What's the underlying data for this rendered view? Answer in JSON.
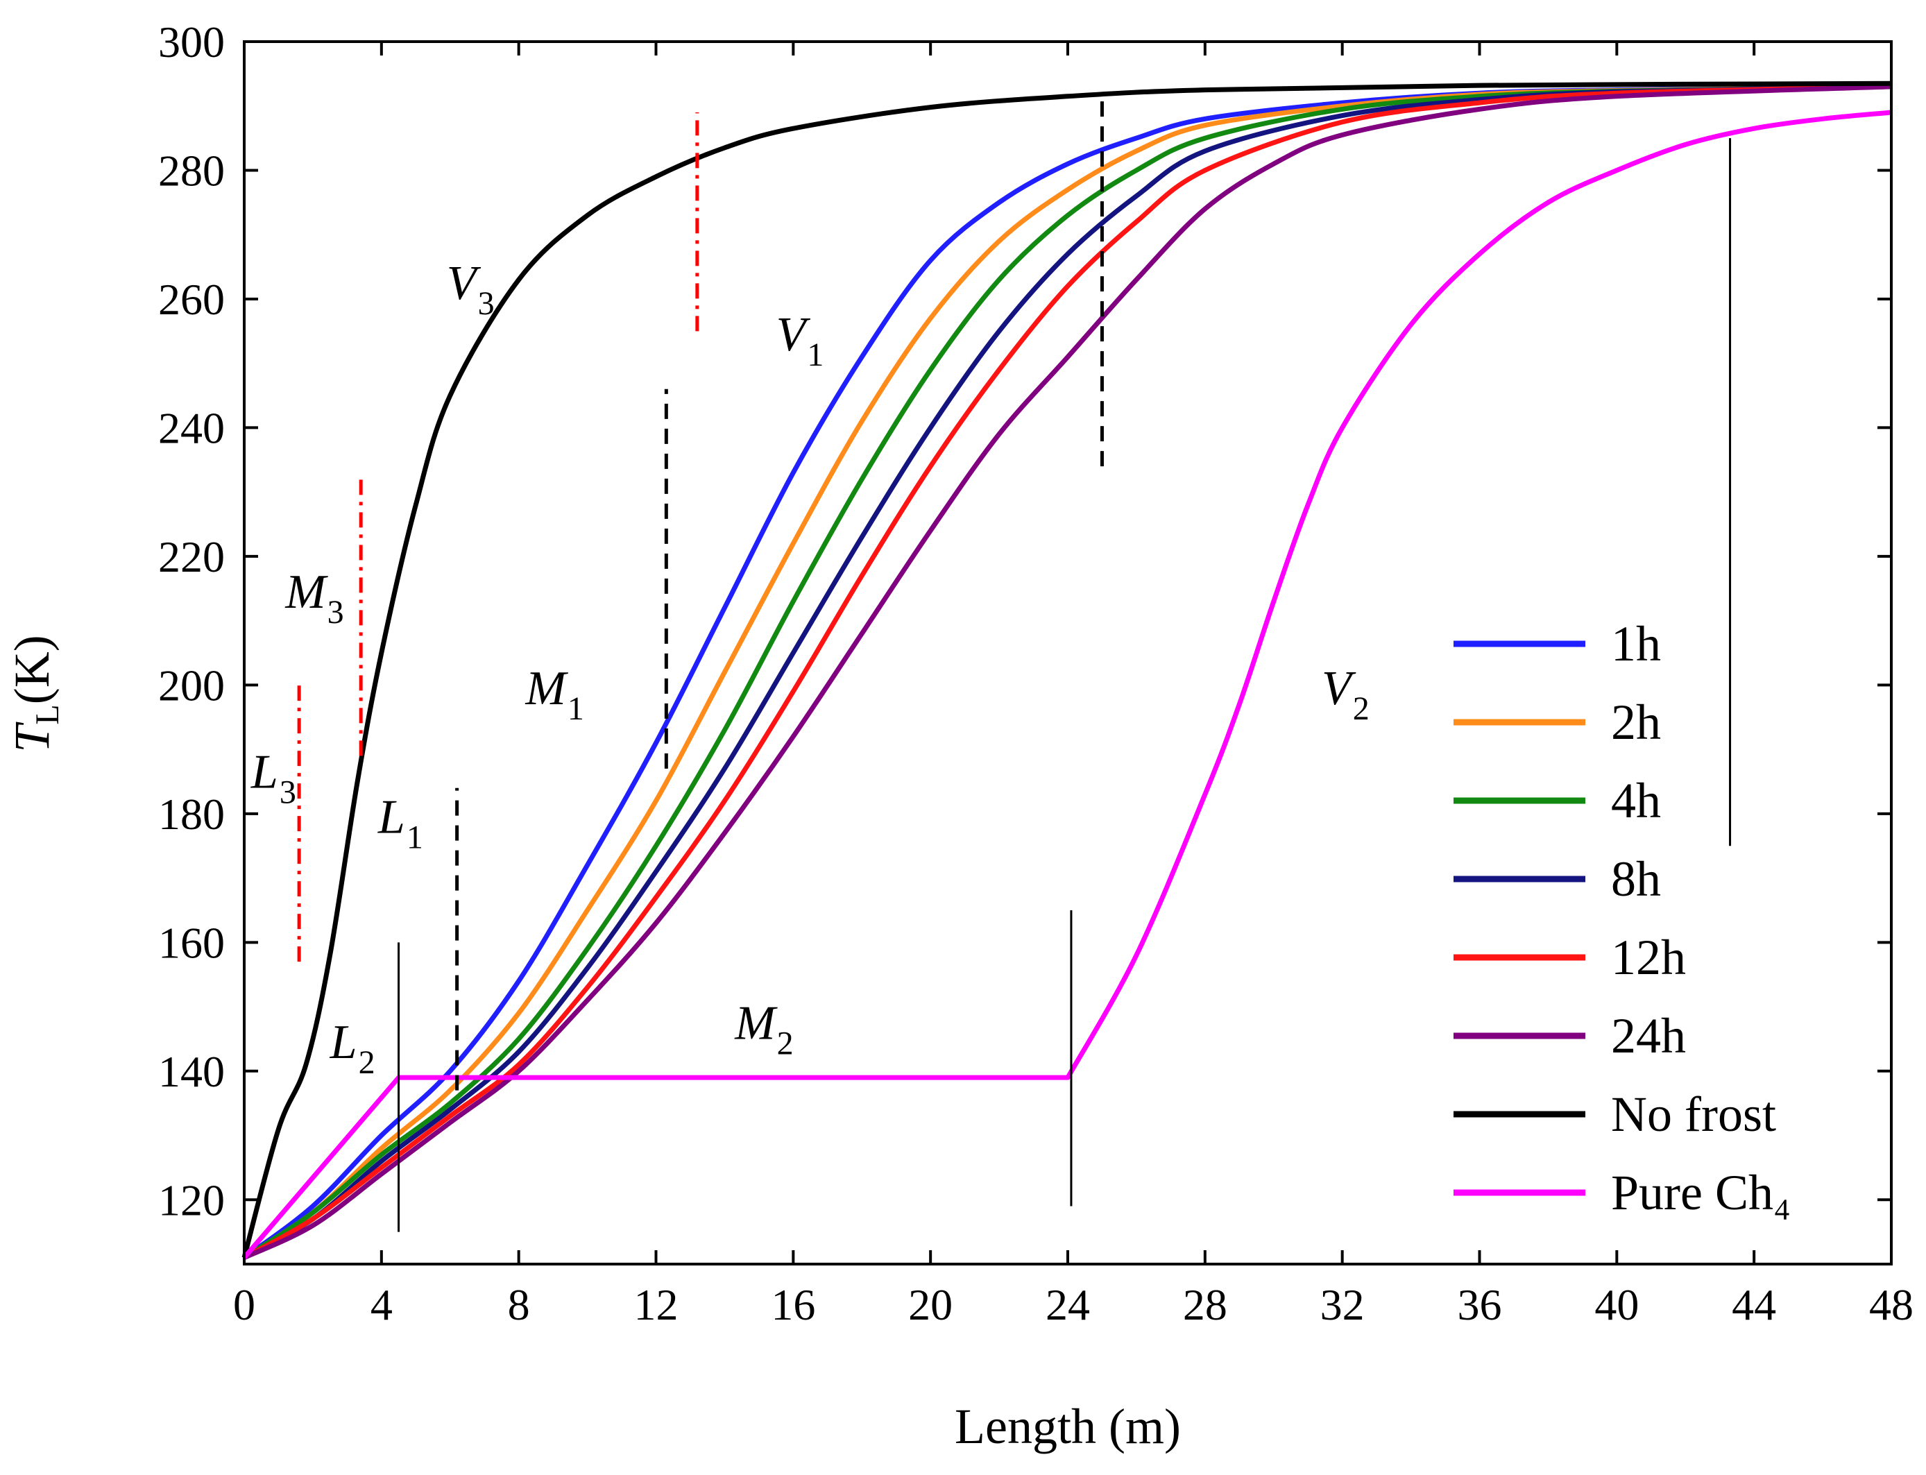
{
  "chart_data": {
    "type": "line",
    "xlabel": "Length (m)",
    "ylabel": {
      "main": "T",
      "sub": "L",
      "unit": "(K)"
    },
    "xlim": [
      0,
      48
    ],
    "ylim": [
      110,
      300
    ],
    "xticks": [
      0,
      4,
      8,
      12,
      16,
      20,
      24,
      28,
      32,
      36,
      40,
      44,
      48
    ],
    "yticks": [
      120,
      140,
      160,
      180,
      200,
      220,
      240,
      260,
      280,
      300
    ],
    "grid": false,
    "legend_position": "bottom-right",
    "series": [
      {
        "name": "1h",
        "color": "#1f1fff",
        "points": [
          [
            0,
            111
          ],
          [
            2,
            119
          ],
          [
            4,
            130
          ],
          [
            6,
            140
          ],
          [
            8,
            154
          ],
          [
            10,
            172
          ],
          [
            12,
            191
          ],
          [
            14,
            212
          ],
          [
            16,
            233
          ],
          [
            18,
            251
          ],
          [
            20,
            266
          ],
          [
            22,
            275
          ],
          [
            24,
            281
          ],
          [
            26,
            285
          ],
          [
            28,
            288
          ],
          [
            32,
            290.5
          ],
          [
            36,
            292
          ],
          [
            40,
            292.5
          ],
          [
            48,
            293
          ]
        ]
      },
      {
        "name": "2h",
        "color": "#ff8c1a",
        "points": [
          [
            0,
            111
          ],
          [
            2,
            118
          ],
          [
            4,
            128
          ],
          [
            6,
            137
          ],
          [
            8,
            149
          ],
          [
            10,
            165
          ],
          [
            12,
            182
          ],
          [
            14,
            202
          ],
          [
            16,
            222
          ],
          [
            18,
            241
          ],
          [
            20,
            257
          ],
          [
            22,
            269
          ],
          [
            24,
            277
          ],
          [
            26,
            283
          ],
          [
            28,
            287
          ],
          [
            32,
            290
          ],
          [
            36,
            291.8
          ],
          [
            40,
            292.4
          ],
          [
            48,
            293
          ]
        ]
      },
      {
        "name": "4h",
        "color": "#128a12",
        "points": [
          [
            0,
            111
          ],
          [
            2,
            118
          ],
          [
            4,
            127
          ],
          [
            6,
            135
          ],
          [
            8,
            145
          ],
          [
            10,
            159
          ],
          [
            12,
            175
          ],
          [
            14,
            193
          ],
          [
            16,
            213
          ],
          [
            18,
            232
          ],
          [
            20,
            249
          ],
          [
            22,
            263
          ],
          [
            24,
            273
          ],
          [
            26,
            280
          ],
          [
            28,
            285
          ],
          [
            32,
            289.5
          ],
          [
            36,
            291.5
          ],
          [
            40,
            292.3
          ],
          [
            48,
            293
          ]
        ]
      },
      {
        "name": "8h",
        "color": "#141480",
        "points": [
          [
            0,
            111
          ],
          [
            2,
            117
          ],
          [
            4,
            126
          ],
          [
            6,
            134
          ],
          [
            8,
            143
          ],
          [
            10,
            156
          ],
          [
            12,
            171
          ],
          [
            14,
            187
          ],
          [
            16,
            205
          ],
          [
            18,
            223
          ],
          [
            20,
            240
          ],
          [
            22,
            255
          ],
          [
            24,
            267
          ],
          [
            26,
            276
          ],
          [
            28,
            283
          ],
          [
            32,
            288.5
          ],
          [
            36,
            291
          ],
          [
            40,
            292.2
          ],
          [
            48,
            293
          ]
        ]
      },
      {
        "name": "12h",
        "color": "#ff1414",
        "points": [
          [
            0,
            111
          ],
          [
            2,
            117
          ],
          [
            4,
            125
          ],
          [
            6,
            133
          ],
          [
            8,
            141
          ],
          [
            10,
            153
          ],
          [
            12,
            167
          ],
          [
            14,
            182
          ],
          [
            16,
            199
          ],
          [
            18,
            217
          ],
          [
            20,
            234
          ],
          [
            22,
            249
          ],
          [
            24,
            262
          ],
          [
            26,
            272
          ],
          [
            28,
            280
          ],
          [
            32,
            287.5
          ],
          [
            36,
            290.5
          ],
          [
            40,
            292
          ],
          [
            48,
            293
          ]
        ]
      },
      {
        "name": "24h",
        "color": "#800080",
        "points": [
          [
            0,
            111
          ],
          [
            2,
            116
          ],
          [
            4,
            124
          ],
          [
            6,
            132
          ],
          [
            8,
            140
          ],
          [
            10,
            151
          ],
          [
            12,
            163
          ],
          [
            14,
            177
          ],
          [
            16,
            192
          ],
          [
            18,
            208
          ],
          [
            20,
            224
          ],
          [
            22,
            239
          ],
          [
            24,
            251
          ],
          [
            26,
            263
          ],
          [
            28,
            274
          ],
          [
            30,
            281
          ],
          [
            32,
            285.5
          ],
          [
            36,
            289.5
          ],
          [
            40,
            291.5
          ],
          [
            48,
            293
          ]
        ]
      },
      {
        "name": "No frost",
        "color": "#000000",
        "points": [
          [
            0,
            111
          ],
          [
            1,
            131
          ],
          [
            1.8,
            141
          ],
          [
            2.5,
            158
          ],
          [
            3.3,
            185
          ],
          [
            4,
            205
          ],
          [
            5,
            228
          ],
          [
            6,
            245
          ],
          [
            8,
            263
          ],
          [
            10,
            273
          ],
          [
            12,
            279
          ],
          [
            14,
            283.5
          ],
          [
            16,
            286.5
          ],
          [
            20,
            289.8
          ],
          [
            24,
            291.5
          ],
          [
            28,
            292.5
          ],
          [
            36,
            293.2
          ],
          [
            48,
            293.5
          ]
        ]
      },
      {
        "name": "Pure Ch₄",
        "color": "#ff00ff",
        "points": [
          [
            0,
            111
          ],
          [
            4.5,
            139
          ],
          [
            24,
            139
          ],
          [
            26,
            158
          ],
          [
            28,
            183
          ],
          [
            29,
            197
          ],
          [
            30,
            213
          ],
          [
            31,
            228
          ],
          [
            32,
            240
          ],
          [
            34,
            256
          ],
          [
            36,
            267
          ],
          [
            38,
            275
          ],
          [
            40,
            280
          ],
          [
            42,
            284
          ],
          [
            44,
            286.5
          ],
          [
            46,
            288
          ],
          [
            48,
            289
          ]
        ]
      }
    ],
    "annotations": [
      {
        "base": "V",
        "sub": "3",
        "x": 5.9,
        "y": 260
      },
      {
        "base": "V",
        "sub": "1",
        "x": 15.5,
        "y": 252
      },
      {
        "base": "V",
        "sub": "2",
        "x": 31.4,
        "y": 197
      },
      {
        "base": "M",
        "sub": "3",
        "x": 1.2,
        "y": 212
      },
      {
        "base": "M",
        "sub": "1",
        "x": 8.2,
        "y": 197
      },
      {
        "base": "M",
        "sub": "2",
        "x": 14.3,
        "y": 145
      },
      {
        "base": "L",
        "sub": "3",
        "x": 0.2,
        "y": 184
      },
      {
        "base": "L",
        "sub": "1",
        "x": 3.9,
        "y": 177
      },
      {
        "base": "L",
        "sub": "2",
        "x": 2.5,
        "y": 142
      }
    ],
    "marker_lines": [
      {
        "x": 1.6,
        "y1": 157,
        "y2": 200,
        "style": "red-dashdot"
      },
      {
        "x": 3.4,
        "y1": 189,
        "y2": 232,
        "style": "red-dashdot"
      },
      {
        "x": 13.2,
        "y1": 255,
        "y2": 289,
        "style": "red-dashdot"
      },
      {
        "x": 6.2,
        "y1": 137,
        "y2": 184,
        "style": "black-dashed"
      },
      {
        "x": 12.3,
        "y1": 187,
        "y2": 246,
        "style": "black-dashed"
      },
      {
        "x": 25,
        "y1": 234,
        "y2": 292,
        "style": "black-dashed"
      },
      {
        "x": 4.5,
        "y1": 115,
        "y2": 160,
        "style": "black-solid"
      },
      {
        "x": 24.1,
        "y1": 119,
        "y2": 165,
        "style": "black-solid"
      },
      {
        "x": 43.3,
        "y1": 175,
        "y2": 285,
        "style": "black-solid"
      }
    ]
  }
}
